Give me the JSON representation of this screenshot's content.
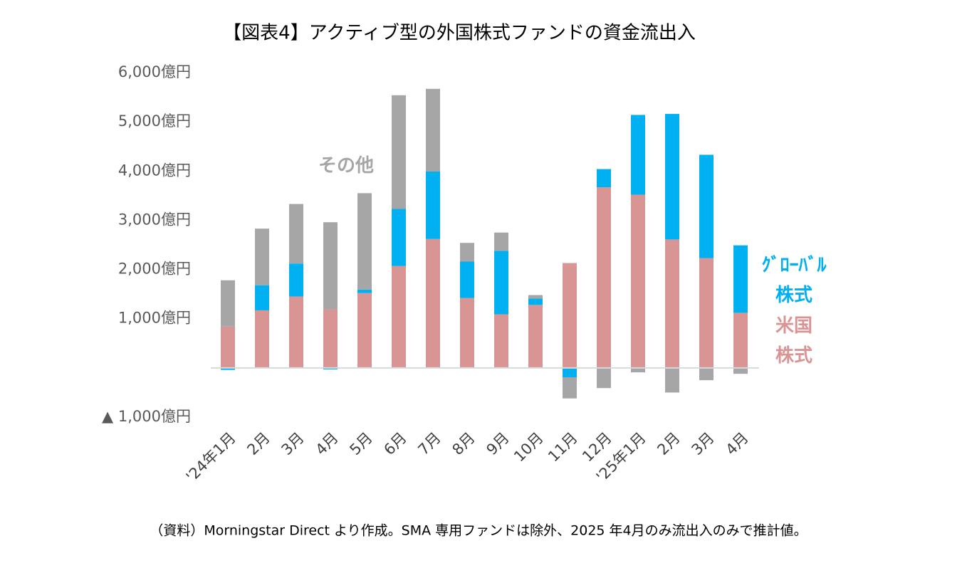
{
  "chart_data": {
    "type": "bar",
    "stacked": true,
    "title": "【図表4】アクティブ型の外国株式ファンドの資金流出入",
    "note": "（資料）Morningstar Direct より作成。SMA 専用ファンドは除外、2025 年4月のみ流出入のみで推計値。",
    "categories": [
      "'24年1月",
      "2月",
      "3月",
      "4月",
      "5月",
      "6月",
      "7月",
      "8月",
      "9月",
      "10月",
      "11月",
      "12月",
      "'25年1月",
      "2月",
      "3月",
      "4月"
    ],
    "series": [
      {
        "name": "米国\n株式",
        "color": "#d99594",
        "values": [
          840,
          1170,
          1450,
          1190,
          1520,
          2070,
          2620,
          1420,
          1090,
          1280,
          2130,
          3670,
          3520,
          2610,
          2230,
          1120
        ]
      },
      {
        "name": "ｸﾞﾛｰﾊﾞﾙ\n株式",
        "color": "#00b0f0",
        "values": [
          -40,
          510,
          670,
          -30,
          70,
          1160,
          1370,
          740,
          1290,
          130,
          -190,
          370,
          1620,
          2550,
          2100,
          1370
        ]
      },
      {
        "name": "その他",
        "color": "#a6a6a6",
        "values": [
          940,
          1150,
          1210,
          1770,
          1960,
          2310,
          1680,
          380,
          370,
          70,
          -430,
          -410,
          -90,
          -500,
          -250,
          -120
        ]
      }
    ],
    "ylim": [
      -1000,
      6000
    ],
    "yticks": [
      {
        "value": -1000,
        "label": "▲ 1,000億円"
      },
      {
        "value": 1000,
        "label": "1,000億円"
      },
      {
        "value": 2000,
        "label": "2,000億円"
      },
      {
        "value": 3000,
        "label": "3,000億円"
      },
      {
        "value": 4000,
        "label": "4,000億円"
      },
      {
        "value": 5000,
        "label": "5,000億円"
      },
      {
        "value": 6000,
        "label": "6,000億円"
      }
    ],
    "grid": false
  }
}
